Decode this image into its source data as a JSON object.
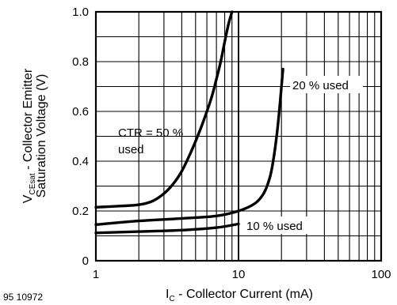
{
  "chart_data": {
    "type": "line",
    "x_scale": "log",
    "xlim": [
      1,
      100
    ],
    "ylim": [
      0,
      1.0
    ],
    "x_ticks": [
      {
        "value": 1,
        "label": "1"
      },
      {
        "value": 10,
        "label": "10"
      },
      {
        "value": 100,
        "label": "100"
      }
    ],
    "y_ticks": [
      {
        "value": 0,
        "label": "0"
      },
      {
        "value": 0.2,
        "label": "0.2"
      },
      {
        "value": 0.4,
        "label": "0.4"
      },
      {
        "value": 0.6,
        "label": "0.6"
      },
      {
        "value": 0.8,
        "label": "0.8"
      },
      {
        "value": 1.0,
        "label": "1.0"
      }
    ],
    "grid": true,
    "xlabel": {
      "main": "I",
      "sub": "C",
      "rest": " - Collector Current (mA)"
    },
    "ylabel": {
      "line1_main": "V",
      "line1_sub": "CEsat",
      "line1_rest": " - Collector Emitter",
      "line2": "Saturation Voltage (V)"
    },
    "series": [
      {
        "name": "CTR = 50 % used",
        "x": [
          1.0,
          1.5,
          2.0,
          2.5,
          3.0,
          3.5,
          4.0,
          4.5,
          5.0,
          5.5,
          6.0,
          6.5,
          7.0,
          7.5,
          8.0,
          8.5,
          9.0
        ],
        "y": [
          0.215,
          0.22,
          0.225,
          0.24,
          0.27,
          0.31,
          0.36,
          0.42,
          0.48,
          0.54,
          0.6,
          0.66,
          0.73,
          0.8,
          0.88,
          0.95,
          1.0
        ]
      },
      {
        "name": "20 % used",
        "x": [
          1.0,
          2.0,
          4.0,
          7.0,
          10.0,
          13.0,
          15.0,
          16.5,
          17.5,
          18.5,
          19.3,
          20.0,
          20.5
        ],
        "y": [
          0.145,
          0.16,
          0.17,
          0.18,
          0.2,
          0.23,
          0.27,
          0.33,
          0.4,
          0.5,
          0.6,
          0.7,
          0.77
        ]
      },
      {
        "name": "10 % used",
        "x": [
          1.0,
          2.0,
          4.0,
          7.0,
          10.0
        ],
        "y": [
          0.112,
          0.117,
          0.123,
          0.133,
          0.148
        ]
      }
    ],
    "annotations": [
      {
        "text_lines": [
          "CTR = 50 %",
          "used"
        ]
      },
      {
        "text_lines": [
          "20 % used"
        ]
      },
      {
        "text_lines": [
          "10 % used"
        ]
      }
    ]
  },
  "figure_id": "95 10972"
}
